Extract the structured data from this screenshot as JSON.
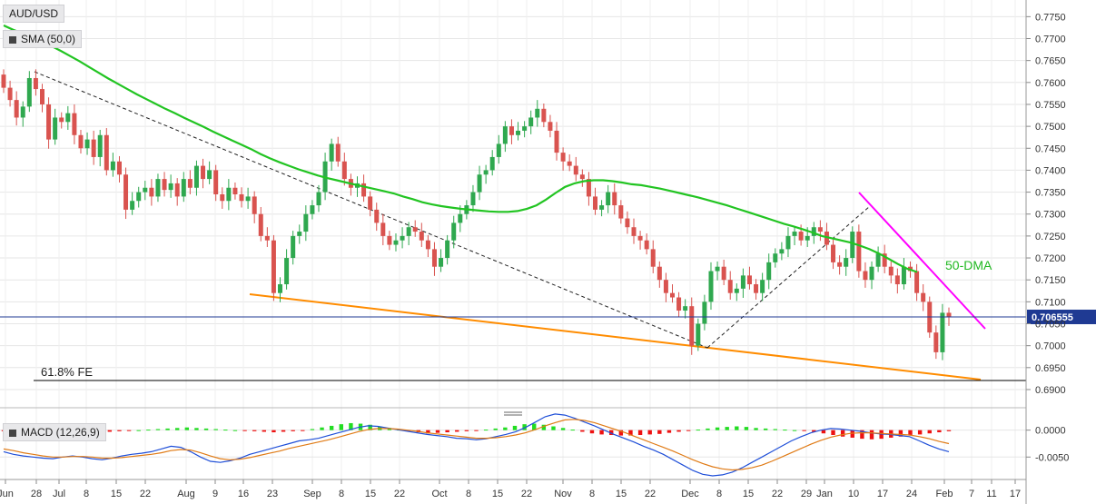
{
  "chart_data": [
    {
      "type": "candlestick",
      "title": "AUD/USD",
      "indicator_label": "SMA (50,0)",
      "y_ticks": [
        "0.7750",
        "0.7700",
        "0.7650",
        "0.7600",
        "0.7550",
        "0.7500",
        "0.7450",
        "0.7400",
        "0.7350",
        "0.7300",
        "0.7250",
        "0.7200",
        "0.7150",
        "0.7100",
        "0.7050",
        "0.7000",
        "0.6950",
        "0.6900"
      ],
      "ylim": [
        0.687,
        0.778
      ],
      "current_price": "0.706555",
      "x_tick_labels": [
        "Jun",
        "28",
        "Jul",
        "8",
        "15",
        "22",
        "Aug",
        "9",
        "16",
        "23",
        "Sep",
        "8",
        "15",
        "22",
        "Oct",
        "8",
        "15",
        "22",
        "Nov",
        "8",
        "15",
        "22",
        "Dec",
        "8",
        "15",
        "22",
        "29",
        "Jan",
        "10",
        "17",
        "24",
        "Feb",
        "7",
        "11",
        "17"
      ],
      "grid": true,
      "annotations": {
        "sma_label": "50-DMA",
        "fib_label": "61.8% FE"
      },
      "colors": {
        "up": "#2fa84f",
        "down": "#d9534f",
        "sma": "#22c422",
        "support": "#ff8c00",
        "resistance": "#ff00ff",
        "price_line": "#1f3a93"
      },
      "series": [
        {
          "type": "candlestick",
          "name": "AUD/USD",
          "close": [
            0.7588,
            0.756,
            0.752,
            0.7545,
            0.761,
            0.7585,
            0.755,
            0.747,
            0.752,
            0.751,
            0.753,
            0.748,
            0.745,
            0.747,
            0.743,
            0.748,
            0.74,
            0.742,
            0.739,
            0.731,
            0.733,
            0.735,
            0.736,
            0.734,
            0.738,
            0.7355,
            0.737,
            0.734,
            0.738,
            0.736,
            0.741,
            0.738,
            0.74,
            0.7345,
            0.733,
            0.736,
            0.7345,
            0.733,
            0.734,
            0.73,
            0.725,
            0.724,
            0.712,
            0.714,
            0.72,
            0.725,
            0.726,
            0.73,
            0.732,
            0.735,
            0.742,
            0.746,
            0.742,
            0.738,
            0.736,
            0.737,
            0.734,
            0.731,
            0.728,
            0.725,
            0.723,
            0.724,
            0.725,
            0.727,
            0.726,
            0.724,
            0.722,
            0.718,
            0.72,
            0.724,
            0.728,
            0.73,
            0.732,
            0.735,
            0.739,
            0.74,
            0.743,
            0.746,
            0.75,
            0.748,
            0.749,
            0.75,
            0.752,
            0.754,
            0.751,
            0.749,
            0.744,
            0.742,
            0.741,
            0.739,
            0.738,
            0.734,
            0.731,
            0.732,
            0.735,
            0.732,
            0.729,
            0.727,
            0.725,
            0.724,
            0.722,
            0.718,
            0.715,
            0.712,
            0.711,
            0.708,
            0.709,
            0.7,
            0.705,
            0.71,
            0.717,
            0.718,
            0.715,
            0.712,
            0.713,
            0.716,
            0.714,
            0.712,
            0.715,
            0.719,
            0.721,
            0.722,
            0.725,
            0.726,
            0.724,
            0.725,
            0.727,
            0.726,
            0.723,
            0.719,
            0.718,
            0.72,
            0.726,
            0.717,
            0.715,
            0.718,
            0.721,
            0.718,
            0.716,
            0.714,
            0.718,
            0.717,
            0.712,
            0.71,
            0.703,
            0.6985,
            0.7075,
            0.7066
          ]
        },
        {
          "type": "line",
          "name": "SMA (50,0)",
          "values": [
            0.773,
            0.772,
            0.7712,
            0.7703,
            0.7693,
            0.7683,
            0.7672,
            0.766,
            0.7648,
            0.7635,
            0.7622,
            0.7609,
            0.7597,
            0.7585,
            0.7573,
            0.7562,
            0.7551,
            0.754,
            0.753,
            0.7519,
            0.7509,
            0.7499,
            0.7488,
            0.7478,
            0.7468,
            0.7458,
            0.7448,
            0.7437,
            0.7427,
            0.7418,
            0.741,
            0.7402,
            0.7395,
            0.7388,
            0.7382,
            0.7377,
            0.7372,
            0.7367,
            0.7362,
            0.7357,
            0.7352,
            0.7347,
            0.734,
            0.7334,
            0.7327,
            0.7322,
            0.7318,
            0.7315,
            0.7312,
            0.731,
            0.7308,
            0.7306,
            0.7305,
            0.7305,
            0.7307,
            0.7312,
            0.732,
            0.7333,
            0.7348,
            0.7362,
            0.737,
            0.7375,
            0.7377,
            0.7377,
            0.7375,
            0.7372,
            0.7368,
            0.7366,
            0.7362,
            0.7358,
            0.7353,
            0.7348,
            0.7343,
            0.7338,
            0.7332,
            0.7326,
            0.732,
            0.7313,
            0.7306,
            0.7299,
            0.7292,
            0.7285,
            0.7278,
            0.7272,
            0.7265,
            0.7258,
            0.725,
            0.7245,
            0.724,
            0.7235,
            0.7228,
            0.722,
            0.721,
            0.7198,
            0.7186,
            0.7175,
            0.7168
          ]
        }
      ]
    },
    {
      "type": "bar",
      "title": "MACD (12,26,9)",
      "y_ticks": [
        "0.0000",
        "-0.0050"
      ],
      "colors": {
        "pos": "#22dd22",
        "neg": "#ee1111",
        "macd": "#1f4fd8",
        "signal": "#e07b16"
      },
      "series": [
        {
          "name": "histogram",
          "values": [
            -0.0002,
            -0.0003,
            -0.0004,
            -0.0005,
            -0.0004,
            -0.0003,
            -0.0002,
            -0.0001,
            -0.0002,
            -0.0003,
            -0.0004,
            -0.0003,
            -0.0002,
            -0.0001,
            0.0,
            0.0001,
            0.0002,
            0.0003,
            0.0004,
            0.0005,
            0.0004,
            0.0003,
            0.0002,
            0.0001,
            0.0,
            -0.0001,
            -0.0002,
            -0.0003,
            -0.0004,
            -0.0003,
            -0.0002,
            -0.0001,
            0.0002,
            0.0005,
            0.0008,
            0.0011,
            0.0013,
            0.0012,
            0.001,
            0.0007,
            0.0004,
            0.0001,
            -0.0002,
            -0.0004,
            -0.0006,
            -0.0005,
            -0.0004,
            -0.0003,
            -0.0002,
            -0.0001,
            0.0001,
            0.0003,
            0.0005,
            0.0008,
            0.0011,
            0.0012,
            0.001,
            0.0007,
            0.0004,
            0.0001,
            -0.0003,
            -0.0006,
            -0.0008,
            -0.0009,
            -0.001,
            -0.001,
            -0.0009,
            -0.0008,
            -0.0007,
            -0.0005,
            -0.0003,
            -0.0001,
            0.0001,
            0.0003,
            0.0005,
            0.0006,
            0.0007,
            0.0006,
            0.0004,
            0.0003,
            0.0002,
            0.0001,
            0.0,
            -0.0001,
            -0.0003,
            -0.0006,
            -0.0009,
            -0.0012,
            -0.0014,
            -0.0016,
            -0.0017,
            -0.0016,
            -0.0014,
            -0.0012,
            -0.001,
            -0.0008,
            -0.0006,
            -0.0004,
            -0.0002
          ]
        },
        {
          "name": "macd",
          "values": [
            -0.004,
            -0.0045,
            -0.0048,
            -0.005,
            -0.0052,
            -0.0053,
            -0.005,
            -0.0048,
            -0.005,
            -0.0053,
            -0.0055,
            -0.0052,
            -0.0048,
            -0.0045,
            -0.0043,
            -0.004,
            -0.0035,
            -0.003,
            -0.0032,
            -0.004,
            -0.005,
            -0.0058,
            -0.006,
            -0.0057,
            -0.0052,
            -0.0045,
            -0.004,
            -0.0035,
            -0.003,
            -0.0025,
            -0.002,
            -0.0018,
            -0.0015,
            -0.001,
            -0.0005,
            0.0,
            0.0005,
            0.0008,
            0.0007,
            0.0004,
            0.0001,
            -0.0002,
            -0.0005,
            -0.0008,
            -0.001,
            -0.0012,
            -0.0015,
            -0.0016,
            -0.0018,
            -0.0016,
            -0.0012,
            -0.0008,
            -0.0003,
            0.0005,
            0.0015,
            0.0025,
            0.003,
            0.0028,
            0.0022,
            0.0015,
            0.0008,
            0.0,
            -0.0008,
            -0.0015,
            -0.0022,
            -0.003,
            -0.0037,
            -0.0045,
            -0.0055,
            -0.0065,
            -0.0075,
            -0.0082,
            -0.0085,
            -0.0083,
            -0.0078,
            -0.007,
            -0.006,
            -0.005,
            -0.004,
            -0.003,
            -0.002,
            -0.0012,
            -0.0005,
            0.0,
            0.0003,
            0.0002,
            0.0,
            -0.0002,
            -0.0005,
            -0.0007,
            -0.0008,
            -0.001,
            -0.0012,
            -0.002,
            -0.0028,
            -0.0035,
            -0.004
          ]
        },
        {
          "name": "signal",
          "values": [
            -0.0035,
            -0.0038,
            -0.0042,
            -0.0045,
            -0.0048,
            -0.005,
            -0.005,
            -0.0049,
            -0.0049,
            -0.005,
            -0.0052,
            -0.0052,
            -0.0051,
            -0.0049,
            -0.0047,
            -0.0045,
            -0.0042,
            -0.0038,
            -0.0036,
            -0.0037,
            -0.0042,
            -0.0048,
            -0.0053,
            -0.0055,
            -0.0054,
            -0.0051,
            -0.0047,
            -0.0043,
            -0.0039,
            -0.0034,
            -0.003,
            -0.0026,
            -0.0022,
            -0.0018,
            -0.0013,
            -0.0008,
            -0.0003,
            0.0001,
            0.0003,
            0.0003,
            0.0002,
            0.0,
            -0.0002,
            -0.0005,
            -0.0007,
            -0.0009,
            -0.0011,
            -0.0013,
            -0.0015,
            -0.0015,
            -0.0014,
            -0.0012,
            -0.0009,
            -0.0005,
            0.0001,
            0.0008,
            0.0014,
            0.0019,
            0.002,
            0.0018,
            0.0014,
            0.0008,
            0.0002,
            -0.0004,
            -0.0011,
            -0.0018,
            -0.0025,
            -0.0032,
            -0.0039,
            -0.0047,
            -0.0055,
            -0.0062,
            -0.0068,
            -0.0072,
            -0.0074,
            -0.0073,
            -0.007,
            -0.0065,
            -0.0058,
            -0.005,
            -0.0042,
            -0.0034,
            -0.0026,
            -0.0019,
            -0.0013,
            -0.0009,
            -0.0006,
            -0.0005,
            -0.0005,
            -0.0006,
            -0.0007,
            -0.0008,
            -0.0009,
            -0.0012,
            -0.0016,
            -0.0021,
            -0.0025
          ]
        }
      ]
    }
  ]
}
